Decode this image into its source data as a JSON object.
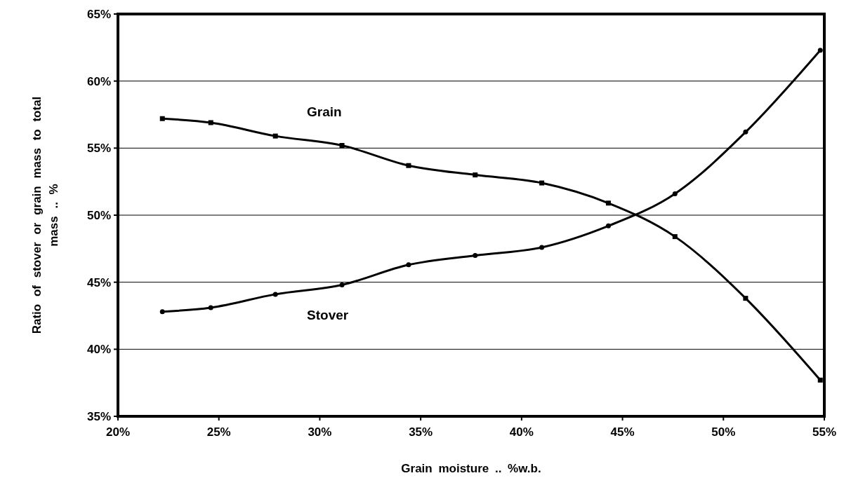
{
  "chart_data": {
    "type": "line",
    "xlabel": "Grain moisture .. %w.b.",
    "ylabel": "Ratio of stover or grain mass to total mass .. %",
    "xlim": [
      20,
      55
    ],
    "ylim": [
      35,
      65
    ],
    "xticks": [
      {
        "value": 20,
        "label": "20%"
      },
      {
        "value": 25,
        "label": "25%"
      },
      {
        "value": 30,
        "label": "30%"
      },
      {
        "value": 35,
        "label": "35%"
      },
      {
        "value": 40,
        "label": "40%"
      },
      {
        "value": 45,
        "label": "45%"
      },
      {
        "value": 50,
        "label": "50%"
      },
      {
        "value": 55,
        "label": "55%"
      }
    ],
    "yticks": [
      {
        "value": 35,
        "label": "35%"
      },
      {
        "value": 40,
        "label": "40%"
      },
      {
        "value": 45,
        "label": "45%"
      },
      {
        "value": 50,
        "label": "50%"
      },
      {
        "value": 55,
        "label": "55%"
      },
      {
        "value": 60,
        "label": "60%"
      },
      {
        "value": 65,
        "label": "65%"
      }
    ],
    "x": [
      22.2,
      24.6,
      27.8,
      31.1,
      34.4,
      37.7,
      41.0,
      44.3,
      47.6,
      51.1,
      54.8
    ],
    "grid": "y",
    "line_style": "solid",
    "series": [
      {
        "name": "Grain",
        "color": "#000000",
        "marker": "square",
        "values": [
          57.2,
          56.9,
          55.9,
          55.2,
          53.7,
          53.0,
          52.4,
          50.9,
          48.4,
          43.8,
          37.7
        ]
      },
      {
        "name": "Stover",
        "color": "#000000",
        "marker": "circle",
        "values": [
          42.8,
          43.1,
          44.1,
          44.8,
          46.3,
          47.0,
          47.6,
          49.2,
          51.6,
          56.2,
          62.3
        ]
      }
    ]
  }
}
